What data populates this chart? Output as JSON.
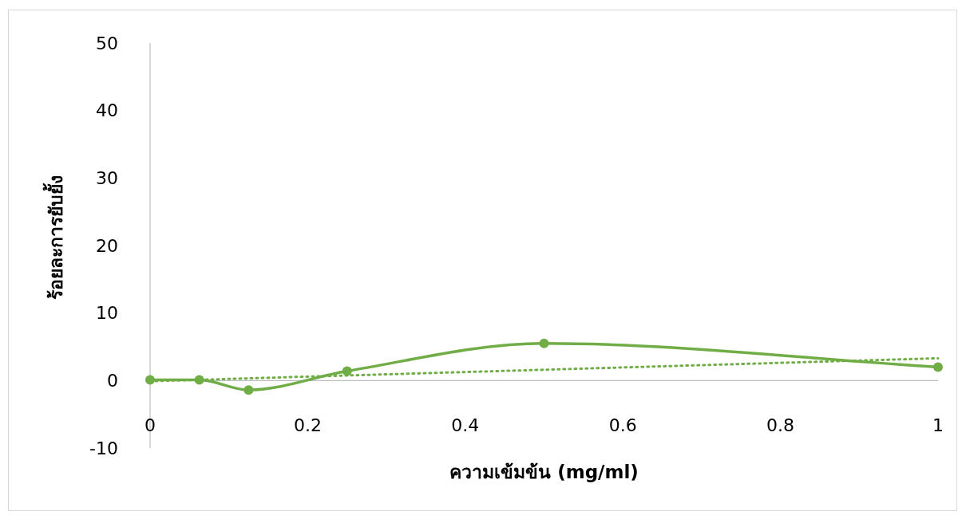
{
  "chart_data": {
    "type": "line",
    "xlabel": "ความเข้มข้น (mg/ml)",
    "ylabel": "ร้อยละการยับยั้ง",
    "x": [
      0,
      0.0625,
      0.125,
      0.25,
      0.5,
      1
    ],
    "series": [
      {
        "color": "#70ad47",
        "values": [
          0.1,
          0.1,
          -1.4,
          1.4,
          5.5,
          2.0
        ],
        "marker": "circle",
        "line_style": "solid"
      },
      {
        "type": "line",
        "color": "#70ad47",
        "x": [
          0,
          1
        ],
        "values": [
          -0.1,
          3.3
        ],
        "marker": "none",
        "line_style": "dotted"
      }
    ],
    "xlim": [
      0,
      1
    ],
    "xticks": [
      0,
      0.2,
      0.4,
      0.6,
      0.8,
      1
    ],
    "ylim": [
      -10,
      50
    ],
    "yticks": [
      -10,
      0,
      10,
      20,
      30,
      40,
      50
    ],
    "grid": false
  }
}
